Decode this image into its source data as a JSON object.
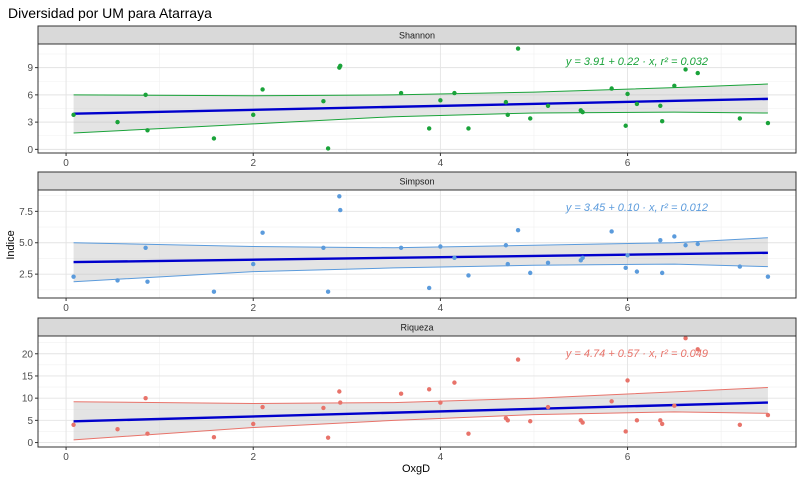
{
  "title": "Diversidad por UM para Atarraya",
  "xlabel": "OxgD",
  "ylabel": "Indice",
  "x_ticks": [
    0,
    2,
    4,
    6
  ],
  "x_range": [
    -0.3,
    7.8
  ],
  "chart_data": [
    {
      "type": "scatter",
      "panel": "Shannon",
      "color": "#1aa33a",
      "ylim": [
        -0.4,
        11.6
      ],
      "y_ticks": [
        0,
        3,
        6,
        9
      ],
      "y_tick_labels": [
        "0",
        "3",
        "6",
        "9"
      ],
      "equation": "y = 3.91 + 0.22 · x,  r² = 0.032",
      "fit": {
        "intercept": 3.91,
        "slope": 0.22
      },
      "ci_upper": [
        [
          0.08,
          6.0
        ],
        [
          2.0,
          5.9
        ],
        [
          3.5,
          6.0
        ],
        [
          5.0,
          6.3
        ],
        [
          6.5,
          6.8
        ],
        [
          7.5,
          7.2
        ]
      ],
      "ci_lower": [
        [
          0.08,
          1.8
        ],
        [
          2.0,
          2.8
        ],
        [
          3.5,
          3.6
        ],
        [
          5.0,
          4.0
        ],
        [
          6.5,
          4.1
        ],
        [
          7.5,
          4.0
        ]
      ],
      "points": [
        [
          0.08,
          3.8
        ],
        [
          0.55,
          3.0
        ],
        [
          0.85,
          6.0
        ],
        [
          0.87,
          2.1
        ],
        [
          1.58,
          1.2
        ],
        [
          2.0,
          3.8
        ],
        [
          2.1,
          6.6
        ],
        [
          2.75,
          5.3
        ],
        [
          2.8,
          0.1
        ],
        [
          2.92,
          9.0
        ],
        [
          2.93,
          9.2
        ],
        [
          3.58,
          6.2
        ],
        [
          3.88,
          2.3
        ],
        [
          4.0,
          5.4
        ],
        [
          4.15,
          6.2
        ],
        [
          4.3,
          2.3
        ],
        [
          4.7,
          5.2
        ],
        [
          4.72,
          3.8
        ],
        [
          4.83,
          11.1
        ],
        [
          4.96,
          3.4
        ],
        [
          5.15,
          4.8
        ],
        [
          5.5,
          4.3
        ],
        [
          5.52,
          4.1
        ],
        [
          5.83,
          6.7
        ],
        [
          5.98,
          2.6
        ],
        [
          6.0,
          6.1
        ],
        [
          6.1,
          5.0
        ],
        [
          6.35,
          4.8
        ],
        [
          6.37,
          3.1
        ],
        [
          6.5,
          7.0
        ],
        [
          6.62,
          8.8
        ],
        [
          6.75,
          8.4
        ],
        [
          7.2,
          3.4
        ],
        [
          7.5,
          2.9
        ]
      ]
    },
    {
      "type": "scatter",
      "panel": "Simpson",
      "color": "#5b9bdc",
      "ylim": [
        0.6,
        9.2
      ],
      "y_ticks": [
        2.5,
        5.0,
        7.5
      ],
      "y_tick_labels": [
        "2.5",
        "5.0",
        "7.5"
      ],
      "equation": "y = 3.45 + 0.10 · x,  r² = 0.012",
      "fit": {
        "intercept": 3.45,
        "slope": 0.1
      },
      "ci_upper": [
        [
          0.08,
          5.0
        ],
        [
          2.0,
          4.7
        ],
        [
          3.5,
          4.6
        ],
        [
          5.0,
          4.8
        ],
        [
          6.5,
          5.0
        ],
        [
          7.5,
          5.4
        ]
      ],
      "ci_lower": [
        [
          0.08,
          1.9
        ],
        [
          2.0,
          2.7
        ],
        [
          3.5,
          3.0
        ],
        [
          5.0,
          3.2
        ],
        [
          6.5,
          3.3
        ],
        [
          7.5,
          3.1
        ]
      ],
      "points": [
        [
          0.08,
          2.3
        ],
        [
          0.55,
          2.0
        ],
        [
          0.85,
          4.6
        ],
        [
          0.87,
          1.9
        ],
        [
          1.58,
          1.1
        ],
        [
          2.0,
          3.3
        ],
        [
          2.1,
          5.8
        ],
        [
          2.75,
          4.6
        ],
        [
          2.8,
          1.1
        ],
        [
          2.92,
          8.7
        ],
        [
          2.93,
          7.6
        ],
        [
          3.58,
          4.6
        ],
        [
          3.88,
          1.4
        ],
        [
          4.0,
          4.7
        ],
        [
          4.15,
          3.8
        ],
        [
          4.3,
          2.4
        ],
        [
          4.7,
          4.8
        ],
        [
          4.72,
          3.3
        ],
        [
          4.83,
          6.0
        ],
        [
          4.96,
          2.6
        ],
        [
          5.15,
          3.4
        ],
        [
          5.5,
          3.6
        ],
        [
          5.52,
          3.8
        ],
        [
          5.83,
          5.9
        ],
        [
          5.98,
          3.0
        ],
        [
          6.0,
          4.0
        ],
        [
          6.1,
          2.7
        ],
        [
          6.35,
          5.2
        ],
        [
          6.37,
          2.6
        ],
        [
          6.5,
          5.5
        ],
        [
          6.62,
          4.8
        ],
        [
          6.75,
          4.9
        ],
        [
          7.2,
          3.1
        ],
        [
          7.5,
          2.3
        ]
      ]
    },
    {
      "type": "scatter",
      "panel": "Riqueza",
      "color": "#e8736a",
      "ylim": [
        -1.0,
        24.0
      ],
      "y_ticks": [
        0,
        5,
        10,
        15,
        20
      ],
      "y_tick_labels": [
        "0",
        "5",
        "10",
        "15",
        "20"
      ],
      "equation": "y = 4.74 + 0.57 · x,  r² = 0.049",
      "fit": {
        "intercept": 4.74,
        "slope": 0.57
      },
      "ci_upper": [
        [
          0.08,
          9.2
        ],
        [
          2.0,
          8.8
        ],
        [
          3.5,
          9.0
        ],
        [
          5.0,
          10.0
        ],
        [
          6.5,
          11.4
        ],
        [
          7.5,
          12.4
        ]
      ],
      "ci_lower": [
        [
          0.08,
          0.6
        ],
        [
          2.0,
          3.4
        ],
        [
          3.5,
          5.0
        ],
        [
          5.0,
          6.3
        ],
        [
          6.5,
          6.9
        ],
        [
          7.5,
          6.6
        ]
      ],
      "points": [
        [
          0.08,
          4.0
        ],
        [
          0.55,
          3.0
        ],
        [
          0.85,
          10.0
        ],
        [
          0.87,
          2.0
        ],
        [
          1.58,
          1.2
        ],
        [
          2.0,
          4.2
        ],
        [
          2.1,
          8.0
        ],
        [
          2.75,
          7.8
        ],
        [
          2.8,
          1.1
        ],
        [
          2.92,
          11.5
        ],
        [
          2.93,
          9.0
        ],
        [
          3.58,
          11.0
        ],
        [
          3.88,
          12.0
        ],
        [
          4.0,
          9.0
        ],
        [
          4.15,
          13.5
        ],
        [
          4.3,
          2.0
        ],
        [
          4.7,
          5.5
        ],
        [
          4.72,
          5.0
        ],
        [
          4.83,
          18.7
        ],
        [
          4.96,
          4.8
        ],
        [
          5.15,
          8.0
        ],
        [
          5.5,
          5.0
        ],
        [
          5.52,
          4.5
        ],
        [
          5.83,
          9.3
        ],
        [
          5.98,
          2.5
        ],
        [
          6.0,
          14.0
        ],
        [
          6.1,
          5.0
        ],
        [
          6.35,
          5.0
        ],
        [
          6.37,
          4.2
        ],
        [
          6.5,
          8.3
        ],
        [
          6.62,
          23.5
        ],
        [
          6.75,
          21.0
        ],
        [
          7.2,
          4.0
        ],
        [
          7.5,
          6.2
        ]
      ]
    }
  ]
}
